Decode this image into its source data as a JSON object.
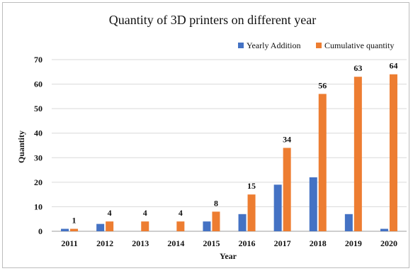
{
  "chart_data": {
    "type": "bar",
    "title": "Quantity of 3D printers on different year",
    "xlabel": "Year",
    "ylabel": "Quantity",
    "categories": [
      "2011",
      "2012",
      "2013",
      "2014",
      "2015",
      "2016",
      "2017",
      "2018",
      "2019",
      "2020"
    ],
    "ylim": [
      0,
      70
    ],
    "yticks": [
      "0",
      "10",
      "20",
      "30",
      "40",
      "50",
      "60",
      "70"
    ],
    "grid": true,
    "legend_position": "top-right",
    "series": [
      {
        "name": "Yearly Addition",
        "color": "#4472c4",
        "values": [
          1,
          3,
          0,
          0,
          4,
          7,
          19,
          22,
          7,
          1
        ]
      },
      {
        "name": "Cumulative quantity",
        "color": "#ed7d31",
        "values": [
          1,
          4,
          4,
          4,
          8,
          15,
          34,
          56,
          63,
          64
        ],
        "data_labels": [
          "1",
          "4",
          "4",
          "4",
          "8",
          "15",
          "34",
          "56",
          "63",
          "64"
        ]
      }
    ]
  }
}
